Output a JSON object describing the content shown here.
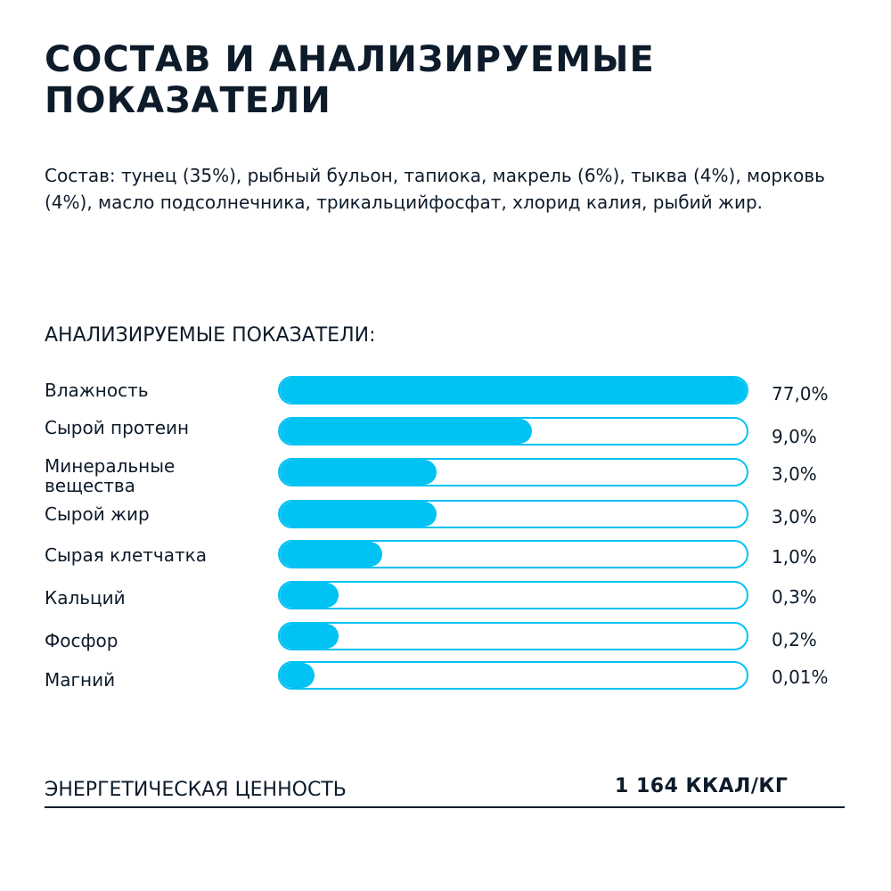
{
  "title": "СОСТАВ И АНАЛИЗИРУЕМЫЕ ПОКАЗАТЕЛИ",
  "composition": "Состав: тунец (35%), рыбный бульон, тапиока, макрель (6%), тыква (4%), морковь (4%), масло подсолнечника, трикальцийфосфат, хлорид калия, рыбий жир.",
  "analysis": {
    "heading": "АНАЛИЗИРУЕМЫЕ ПОКАЗАТЕЛИ:",
    "accent_color": "#00c2f3",
    "items": [
      {
        "label": "Влажность",
        "value": "77,0%",
        "fill": 1.0
      },
      {
        "label": "Сырой протеин",
        "value": "9,0%",
        "fill": 0.54
      },
      {
        "label": "Минеральные\nвещества",
        "value": "3,0%",
        "fill": 0.335
      },
      {
        "label": "Сырой жир",
        "value": "3,0%",
        "fill": 0.335
      },
      {
        "label": "Сырая клетчатка",
        "value": "1,0%",
        "fill": 0.22
      },
      {
        "label": "Кальций",
        "value": "0,3%",
        "fill": 0.125
      },
      {
        "label": "Фосфор",
        "value": "0,2%",
        "fill": 0.125
      },
      {
        "label": "Магний",
        "value": "0,01%",
        "fill": 0.075
      }
    ]
  },
  "energy": {
    "label": "ЭНЕРГЕТИЧЕСКАЯ ЦЕННОСТЬ",
    "value": "1 164 ККАЛ/КГ"
  }
}
